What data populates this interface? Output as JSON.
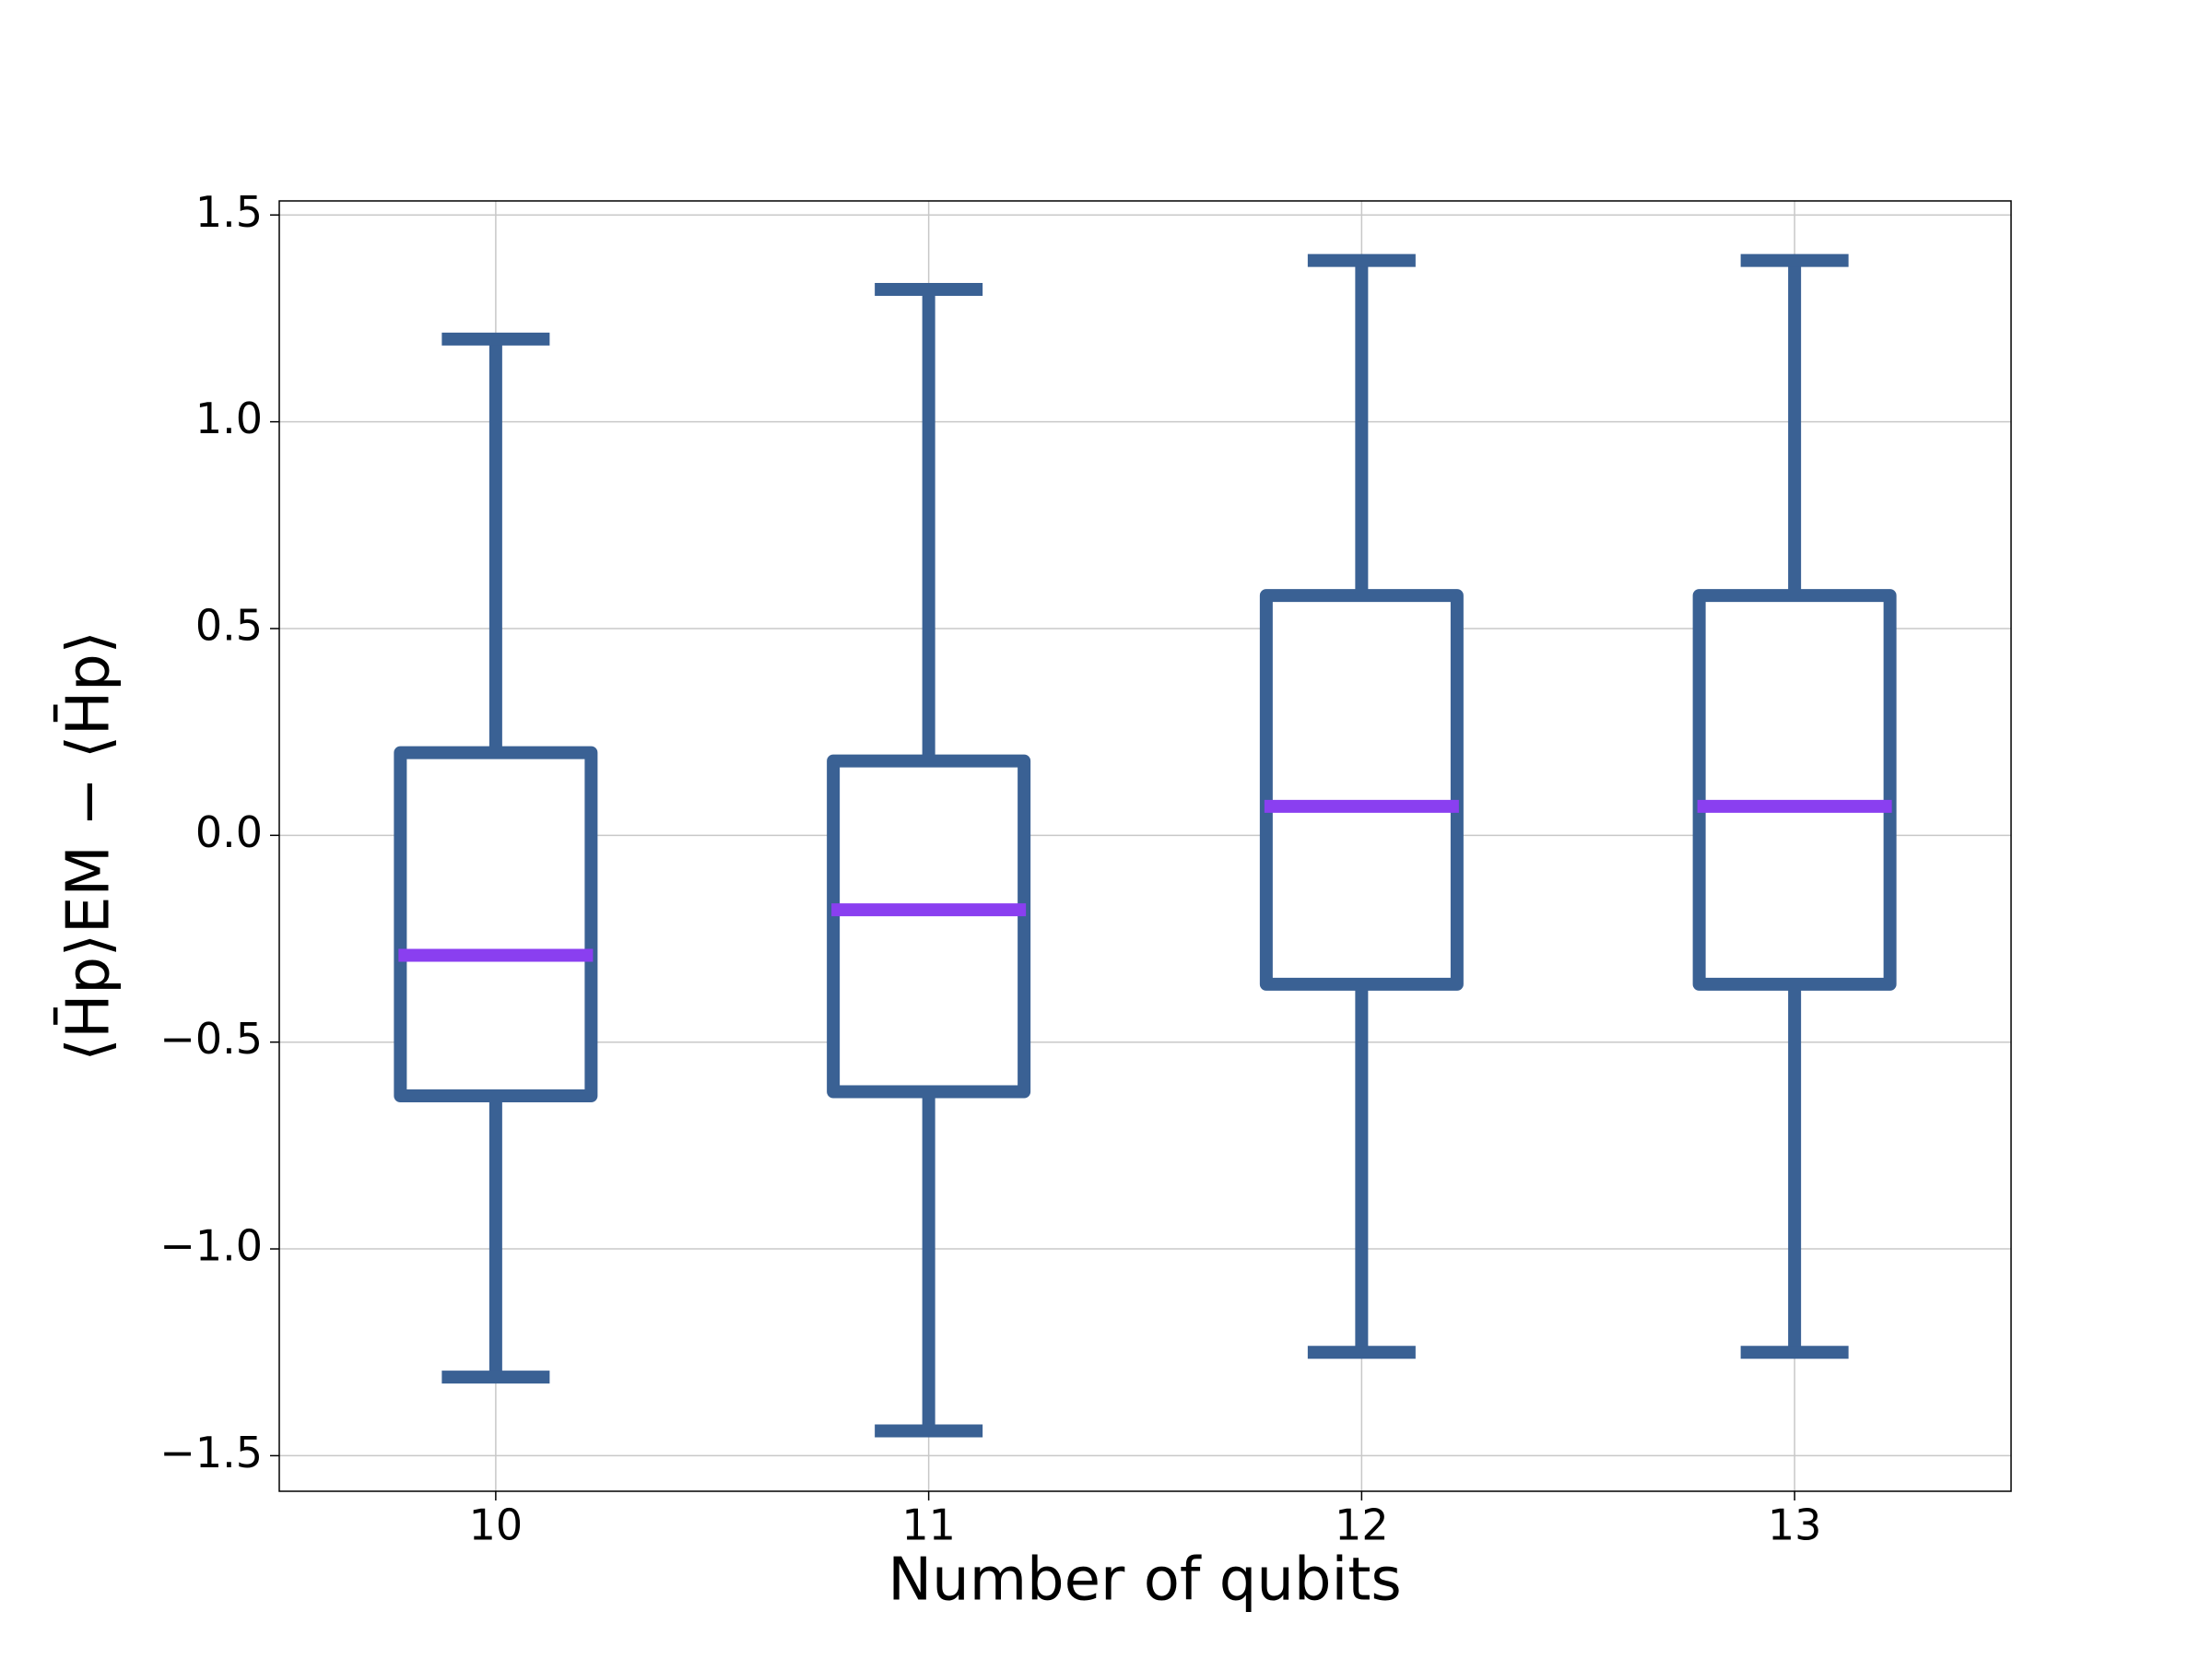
{
  "chart_data": {
    "type": "box",
    "x_label": "Number of qubits",
    "y_label": "⟨H̄p⟩EM − ⟨H̄p⟩",
    "categories": [
      "10",
      "11",
      "12",
      "13"
    ],
    "boxes": [
      {
        "whisker_low": -1.31,
        "q1": -0.63,
        "median": -0.29,
        "q3": 0.2,
        "whisker_high": 1.2
      },
      {
        "whisker_low": -1.44,
        "q1": -0.62,
        "median": -0.18,
        "q3": 0.18,
        "whisker_high": 1.32
      },
      {
        "whisker_low": -1.25,
        "q1": -0.36,
        "median": 0.07,
        "q3": 0.58,
        "whisker_high": 1.39
      },
      {
        "whisker_low": -1.25,
        "q1": -0.36,
        "median": 0.07,
        "q3": 0.58,
        "whisker_high": 1.39
      }
    ],
    "color": "#3a6194",
    "median_color": "#8a3ff0",
    "ylim": [
      -1.586,
      1.534
    ],
    "yticks": [
      {
        "value": -1.5,
        "label": "−1.5"
      },
      {
        "value": -1.0,
        "label": "−1.0"
      },
      {
        "value": -0.5,
        "label": "−0.5"
      },
      {
        "value": 0.0,
        "label": "0.0"
      },
      0.5,
      {
        "value": 1.0,
        "label": "1.0"
      },
      1.5
    ],
    "grid": true
  }
}
